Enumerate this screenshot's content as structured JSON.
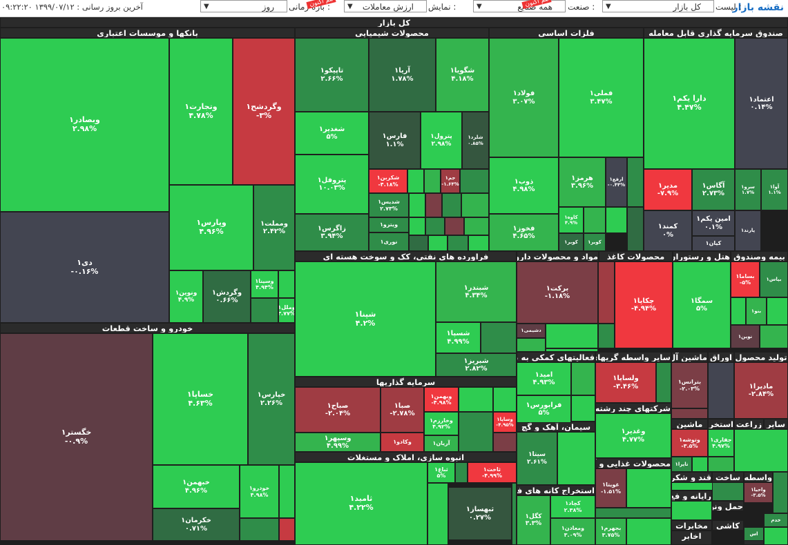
{
  "topbar": {
    "brand": "نقشه بازار",
    "list_label": "لیست :",
    "list_value": "کل بازار",
    "industry_label": "صنعت :",
    "industry_value": "همه صنایع",
    "display_label": "نمایش :",
    "display_value": "ارزش معاملات",
    "period_label": "بازه زمانی :",
    "period_value": "روز",
    "badge_text": "هم اکنون",
    "update_text": "آخرین بروز رسانی : ۱۳۹۹/۰۷/۱۲ ۰۹:۲۲:۲۰"
  },
  "colors": {
    "g1": "#2ecc52",
    "g2": "#34b44e",
    "g3": "#2f8d49",
    "g4": "#306c43",
    "g5": "#35563f",
    "n0": "#434551",
    "r1": "#f0383f",
    "r2": "#c63a41",
    "r3": "#9f3c43",
    "r4": "#7b3e46",
    "r5": "#5f3d45"
  },
  "root_title": "کل بازار",
  "sectors": [
    {
      "title": "بانکها و موسسات اعتباری"
    },
    {
      "title": "محصولات شیمیایی"
    },
    {
      "title": "فلزات اساسی"
    },
    {
      "title": "صندوق سرمایه گذاری قابل معامله"
    },
    {
      "title": "فراورده های نفتی، کک و سوخت هسته ای"
    },
    {
      "title": "مواد و محصولات دارویی"
    },
    {
      "title": "محصولات کاغذ"
    },
    {
      "title": "هتل و رستوران"
    },
    {
      "title": "بیمه وصندوق"
    },
    {
      "title": "خودرو و ساخت قطعات"
    },
    {
      "title": "سرمایه گذاریها"
    },
    {
      "title": "فعالیتهای کمکی به نه"
    },
    {
      "title": "سایر واسطه گریهای"
    },
    {
      "title": "ماشین آل"
    },
    {
      "title": "اوراق"
    },
    {
      "title": "تولید محصول"
    },
    {
      "title": "شرکتهای چند رشته"
    },
    {
      "title": "سیمان، آهک و گچ"
    },
    {
      "title": "انبوه سازی، املاک و مستغلات"
    },
    {
      "title": "محصولات غذایی و آش"
    },
    {
      "title": "استخراج کانه های فل"
    },
    {
      "title": "عرضه برق، گاز، بخا"
    },
    {
      "title": "قند و شکر"
    },
    {
      "title": "واسطه"
    },
    {
      "title": "ساخت"
    },
    {
      "title": "رایانه و فع"
    },
    {
      "title": "حمل ونق"
    },
    {
      "title": "کاشی"
    },
    {
      "title": "مخابرات"
    },
    {
      "title": "اخابر"
    },
    {
      "title": "حمل"
    },
    {
      "title": "سایر"
    },
    {
      "title": "زراعت"
    },
    {
      "title": "استخرا"
    },
    {
      "title": "ماشین"
    }
  ],
  "tiles": [
    {
      "name": "وبصادر۱",
      "pct": "۲.۹۸%"
    },
    {
      "name": "وتجارت۱",
      "pct": "۴.۷۸%"
    },
    {
      "name": "وگردشح۱",
      "pct": "-۳%"
    },
    {
      "name": "وپارس۱",
      "pct": "۴.۹۶%"
    },
    {
      "name": "ومملت۱",
      "pct": "۲.۴۲%"
    },
    {
      "name": "دی۱",
      "pct": "-۰.۱۶%"
    },
    {
      "name": "ونوین۱",
      "pct": "۴.۹%"
    },
    {
      "name": "وگردش۱",
      "pct": "۰.۶۶%"
    },
    {
      "name": "وسینا۱",
      "pct": "۴.۹۴%"
    },
    {
      "name": "وملل۱",
      "pct": "۳.۷۷%"
    },
    {
      "name": "تاپیکو۱",
      "pct": "۲.۶۶%"
    },
    {
      "name": "آریا۱",
      "pct": "۱.۷۸%"
    },
    {
      "name": "شگویا۱",
      "pct": "۴.۱۸%"
    },
    {
      "name": "شغدیر۱",
      "pct": "۵%"
    },
    {
      "name": "فارس۱",
      "pct": "۱.۱%"
    },
    {
      "name": "پترول۱",
      "pct": "۲.۹۸%"
    },
    {
      "name": "شلرد۱",
      "pct": "۰.۸۵%"
    },
    {
      "name": "پتروفل۱",
      "pct": "۱۰.۰۳%"
    },
    {
      "name": "شکربن۱",
      "pct": "-۴.۱۸%"
    },
    {
      "name": "جم۱",
      "pct": "-۱.۶۴%"
    },
    {
      "name": "شدیس۱",
      "pct": "۲.۷۳%"
    },
    {
      "name": "زاگرس۱",
      "pct": "۳.۹۴%"
    },
    {
      "name": "ویترو۱",
      "pct": ""
    },
    {
      "name": "نوری۱",
      "pct": ""
    },
    {
      "name": "فولاد۱",
      "pct": "۳.۰۷%"
    },
    {
      "name": "فملی۱",
      "pct": "۳.۴۷%"
    },
    {
      "name": "ذوب۱",
      "pct": "۴.۹۸%"
    },
    {
      "name": "هرمز۱",
      "pct": "۳.۹۶%"
    },
    {
      "name": "ارفع۱",
      "pct": "-۰.۴۴%"
    },
    {
      "name": "کاوه۱",
      "pct": "۴.۹%"
    },
    {
      "name": "فخوز۱",
      "pct": "۴.۶۵%"
    },
    {
      "name": "کویر۱",
      "pct": ""
    },
    {
      "name": "کوبر۱",
      "pct": ""
    },
    {
      "name": "دارا یکم۱",
      "pct": "۴.۴۷%"
    },
    {
      "name": "اعتماد۱",
      "pct": "۰.۱۴%"
    },
    {
      "name": "مدیر۱",
      "pct": "-۷.۹%"
    },
    {
      "name": "آگاس۱",
      "pct": "۲.۷۳%"
    },
    {
      "name": "سرو۱",
      "pct": "۱.۷%"
    },
    {
      "name": "آوا۱",
      "pct": "۱.۱%"
    },
    {
      "name": "کمند۱",
      "pct": "۰%"
    },
    {
      "name": "امین یکم۱",
      "pct": "۰.۱%"
    },
    {
      "name": "کیان۱",
      "pct": ""
    },
    {
      "name": "پارند۱",
      "pct": ""
    },
    {
      "name": "شپنا۱",
      "pct": "۴.۲%"
    },
    {
      "name": "شبندر۱",
      "pct": "۴.۳۴%"
    },
    {
      "name": "شسپا۱",
      "pct": "۴.۹۹%"
    },
    {
      "name": "شبریز۱",
      "pct": "۲.۸۲%"
    },
    {
      "name": "برکت۱",
      "pct": "-۱.۱۸%"
    },
    {
      "name": "دشیمی۱",
      "pct": ""
    },
    {
      "name": "چکاپا۱",
      "pct": "-۴.۹۴%"
    },
    {
      "name": "سمگا۱",
      "pct": "۵%"
    },
    {
      "name": "بساما۱",
      "pct": "-۵%"
    },
    {
      "name": "بپاس۱",
      "pct": ""
    },
    {
      "name": "بنو۱",
      "pct": ""
    },
    {
      "name": "نوین۱",
      "pct": ""
    },
    {
      "name": "خگستر۱",
      "pct": "-۰.۹%"
    },
    {
      "name": "خساپا۱",
      "pct": "۴.۶۳%"
    },
    {
      "name": "خپارس۱",
      "pct": "۲.۲۶%"
    },
    {
      "name": "خبهمن۱",
      "pct": "۴.۹۶%"
    },
    {
      "name": "خودرو۱",
      "pct": "۴.۹۸%"
    },
    {
      "name": "خکرمان۱",
      "pct": "۰.۷۱%"
    },
    {
      "name": "صباح۱",
      "pct": "-۲.۰۴%"
    },
    {
      "name": "صبا۱",
      "pct": "-۲.۷۸%"
    },
    {
      "name": "وبهمن۱",
      "pct": "-۴.۹۸%"
    },
    {
      "name": "وخارزم۱",
      "pct": "۴.۹۲%"
    },
    {
      "name": "وسپهر۱",
      "pct": "۴.۹۹%"
    },
    {
      "name": "وکادو۱",
      "pct": ""
    },
    {
      "name": "آریان۱",
      "pct": ""
    },
    {
      "name": "وساپا۱",
      "pct": "-۴.۹۵%"
    },
    {
      "name": "امید۱",
      "pct": "۴.۹۳%"
    },
    {
      "name": "فرابورس۱",
      "pct": "۵%"
    },
    {
      "name": "ولساپا۱",
      "pct": "-۳.۴۶%"
    },
    {
      "name": "بترانس۱",
      "pct": "-۲.۰۳%"
    },
    {
      "name": "مادیرا۱",
      "pct": "-۲.۸۴%"
    },
    {
      "name": "وغدیر۱",
      "pct": "۴.۷۷%"
    },
    {
      "name": "سیتا۱",
      "pct": "۲.۶۱%"
    },
    {
      "name": "وتوشه۱",
      "pct": "-۳.۵%"
    },
    {
      "name": "جفاری۱",
      "pct": "۴.۹۷%"
    },
    {
      "name": "تاپرا۱",
      "pct": ""
    },
    {
      "name": "ثامید۱",
      "pct": "۴.۲۲%"
    },
    {
      "name": "ثباغ۱",
      "pct": "۵%"
    },
    {
      "name": "ثاخت۱",
      "pct": "-۴.۹۹%"
    },
    {
      "name": "ثبهساز۱",
      "pct": "۰.۲۷%"
    },
    {
      "name": "غویتا۱",
      "pct": "-۱.۵۱%"
    },
    {
      "name": "کچاد۱",
      "pct": "۲.۳۸%"
    },
    {
      "name": "کگل۱",
      "pct": "۳.۳%"
    },
    {
      "name": "ومعادن۱",
      "pct": "۳.۰۹%"
    },
    {
      "name": "بجهرم۱",
      "pct": "۳.۷۵%"
    },
    {
      "name": "واحیا۱",
      "pct": "-۳.۵%"
    },
    {
      "name": "خدم",
      "pct": ""
    },
    {
      "name": "اس",
      "pct": ""
    }
  ]
}
